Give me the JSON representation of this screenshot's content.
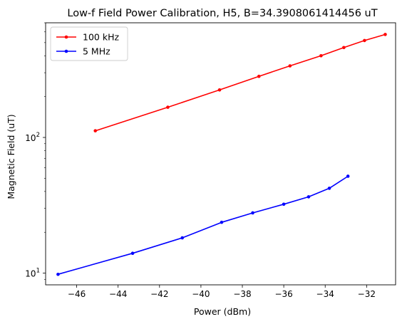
{
  "chart_data": {
    "type": "line",
    "title": "Low-f Field Power Calibration, H5, B=34.3908061414456 uT",
    "xlabel": "Power (dBm)",
    "ylabel": "Magnetic Field (uT)",
    "xscale": "linear",
    "yscale": "log",
    "xlim": [
      -47.5,
      -30.6
    ],
    "ylim": [
      8.2,
      700
    ],
    "xticks": [
      -46,
      -44,
      -42,
      -40,
      -38,
      -36,
      -34,
      -32
    ],
    "xtick_labels": [
      "−46",
      "−44",
      "−42",
      "−40",
      "−38",
      "−36",
      "−34",
      "−32"
    ],
    "yticks_major": [
      {
        "value": 10,
        "base": "10",
        "exp": "1"
      },
      {
        "value": 100,
        "base": "10",
        "exp": "2"
      }
    ],
    "grid": false,
    "legend_position": "top-left",
    "series": [
      {
        "name": "100 kHz",
        "color": "#ff0000",
        "marker": "circle",
        "x": [
          -45.1,
          -41.6,
          -39.1,
          -37.2,
          -35.7,
          -34.2,
          -33.1,
          -32.1,
          -31.1
        ],
        "y": [
          112,
          167,
          224,
          282,
          337,
          400,
          460,
          518,
          574
        ]
      },
      {
        "name": "5 MHz",
        "color": "#0000ff",
        "marker": "circle",
        "x": [
          -46.9,
          -43.3,
          -40.9,
          -39.0,
          -37.5,
          -36.0,
          -34.8,
          -33.8,
          -32.9
        ],
        "y": [
          9.8,
          14.0,
          18.2,
          23.7,
          27.8,
          32.2,
          36.5,
          42.2,
          51.8
        ]
      }
    ]
  }
}
